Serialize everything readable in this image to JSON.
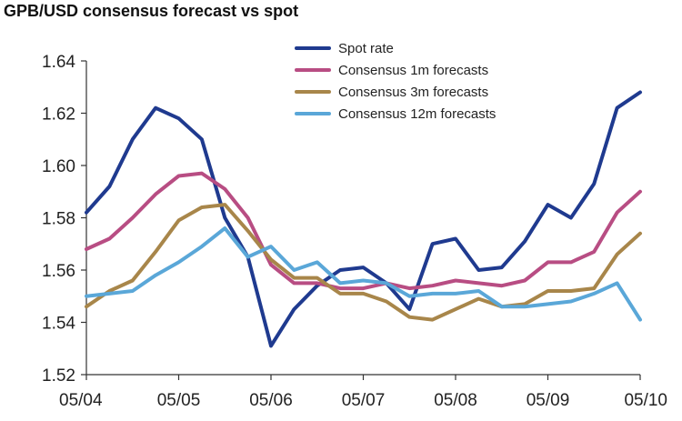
{
  "chart_data": {
    "type": "line",
    "title": "GPB/USD consensus forecast vs spot",
    "xlabel": "",
    "ylabel": "",
    "xlim": [
      0,
      72
    ],
    "ylim": [
      1.52,
      1.64
    ],
    "y_ticks": [
      "1.52",
      "1.54",
      "1.56",
      "1.58",
      "1.60",
      "1.62",
      "1.64"
    ],
    "y_tick_values": [
      1.52,
      1.54,
      1.56,
      1.58,
      1.6,
      1.62,
      1.64
    ],
    "x_ticks": [
      "05/04",
      "05/05",
      "05/06",
      "05/07",
      "05/08",
      "05/09",
      "05/10"
    ],
    "x_tick_values": [
      0,
      12,
      24,
      36,
      48,
      60,
      72
    ],
    "legend_position": "top-right",
    "grid": false,
    "series": [
      {
        "name": "Spot rate",
        "color": "#1f3a8f",
        "x": [
          0,
          3,
          6,
          9,
          12,
          15,
          18,
          21,
          24,
          27,
          30,
          33,
          36,
          39,
          42,
          45,
          48,
          51,
          54,
          57,
          60,
          63,
          66,
          69,
          72
        ],
        "values": [
          1.582,
          1.592,
          1.61,
          1.622,
          1.618,
          1.61,
          1.58,
          1.565,
          1.531,
          1.545,
          1.554,
          1.56,
          1.561,
          1.555,
          1.545,
          1.57,
          1.572,
          1.56,
          1.561,
          1.571,
          1.585,
          1.58,
          1.593,
          1.622,
          1.628
        ]
      },
      {
        "name": "Consensus 1m forecasts",
        "color": "#b84d83",
        "x": [
          0,
          3,
          6,
          9,
          12,
          15,
          18,
          21,
          24,
          27,
          30,
          33,
          36,
          39,
          42,
          45,
          48,
          51,
          54,
          57,
          60,
          63,
          66,
          69,
          72
        ],
        "values": [
          1.568,
          1.572,
          1.58,
          1.589,
          1.596,
          1.597,
          1.591,
          1.58,
          1.562,
          1.555,
          1.555,
          1.553,
          1.553,
          1.555,
          1.553,
          1.554,
          1.556,
          1.555,
          1.554,
          1.556,
          1.563,
          1.563,
          1.567,
          1.582,
          1.59
        ]
      },
      {
        "name": "Consensus 3m forecasts",
        "color": "#a8864a",
        "x": [
          0,
          3,
          6,
          9,
          12,
          15,
          18,
          21,
          24,
          27,
          30,
          33,
          36,
          39,
          42,
          45,
          48,
          51,
          54,
          57,
          60,
          63,
          66,
          69,
          72
        ],
        "values": [
          1.546,
          1.552,
          1.556,
          1.567,
          1.579,
          1.584,
          1.585,
          1.575,
          1.564,
          1.557,
          1.557,
          1.551,
          1.551,
          1.548,
          1.542,
          1.541,
          1.545,
          1.549,
          1.546,
          1.547,
          1.552,
          1.552,
          1.553,
          1.566,
          1.574
        ]
      },
      {
        "name": "Consensus 12m forecasts",
        "color": "#5aa7d8",
        "x": [
          0,
          3,
          6,
          9,
          12,
          15,
          18,
          21,
          24,
          27,
          30,
          33,
          36,
          39,
          42,
          45,
          48,
          51,
          54,
          57,
          60,
          63,
          66,
          69,
          72
        ],
        "values": [
          1.55,
          1.551,
          1.552,
          1.558,
          1.563,
          1.569,
          1.576,
          1.565,
          1.569,
          1.56,
          1.563,
          1.555,
          1.556,
          1.555,
          1.55,
          1.551,
          1.551,
          1.552,
          1.546,
          1.546,
          1.547,
          1.548,
          1.551,
          1.555,
          1.541
        ]
      }
    ]
  }
}
